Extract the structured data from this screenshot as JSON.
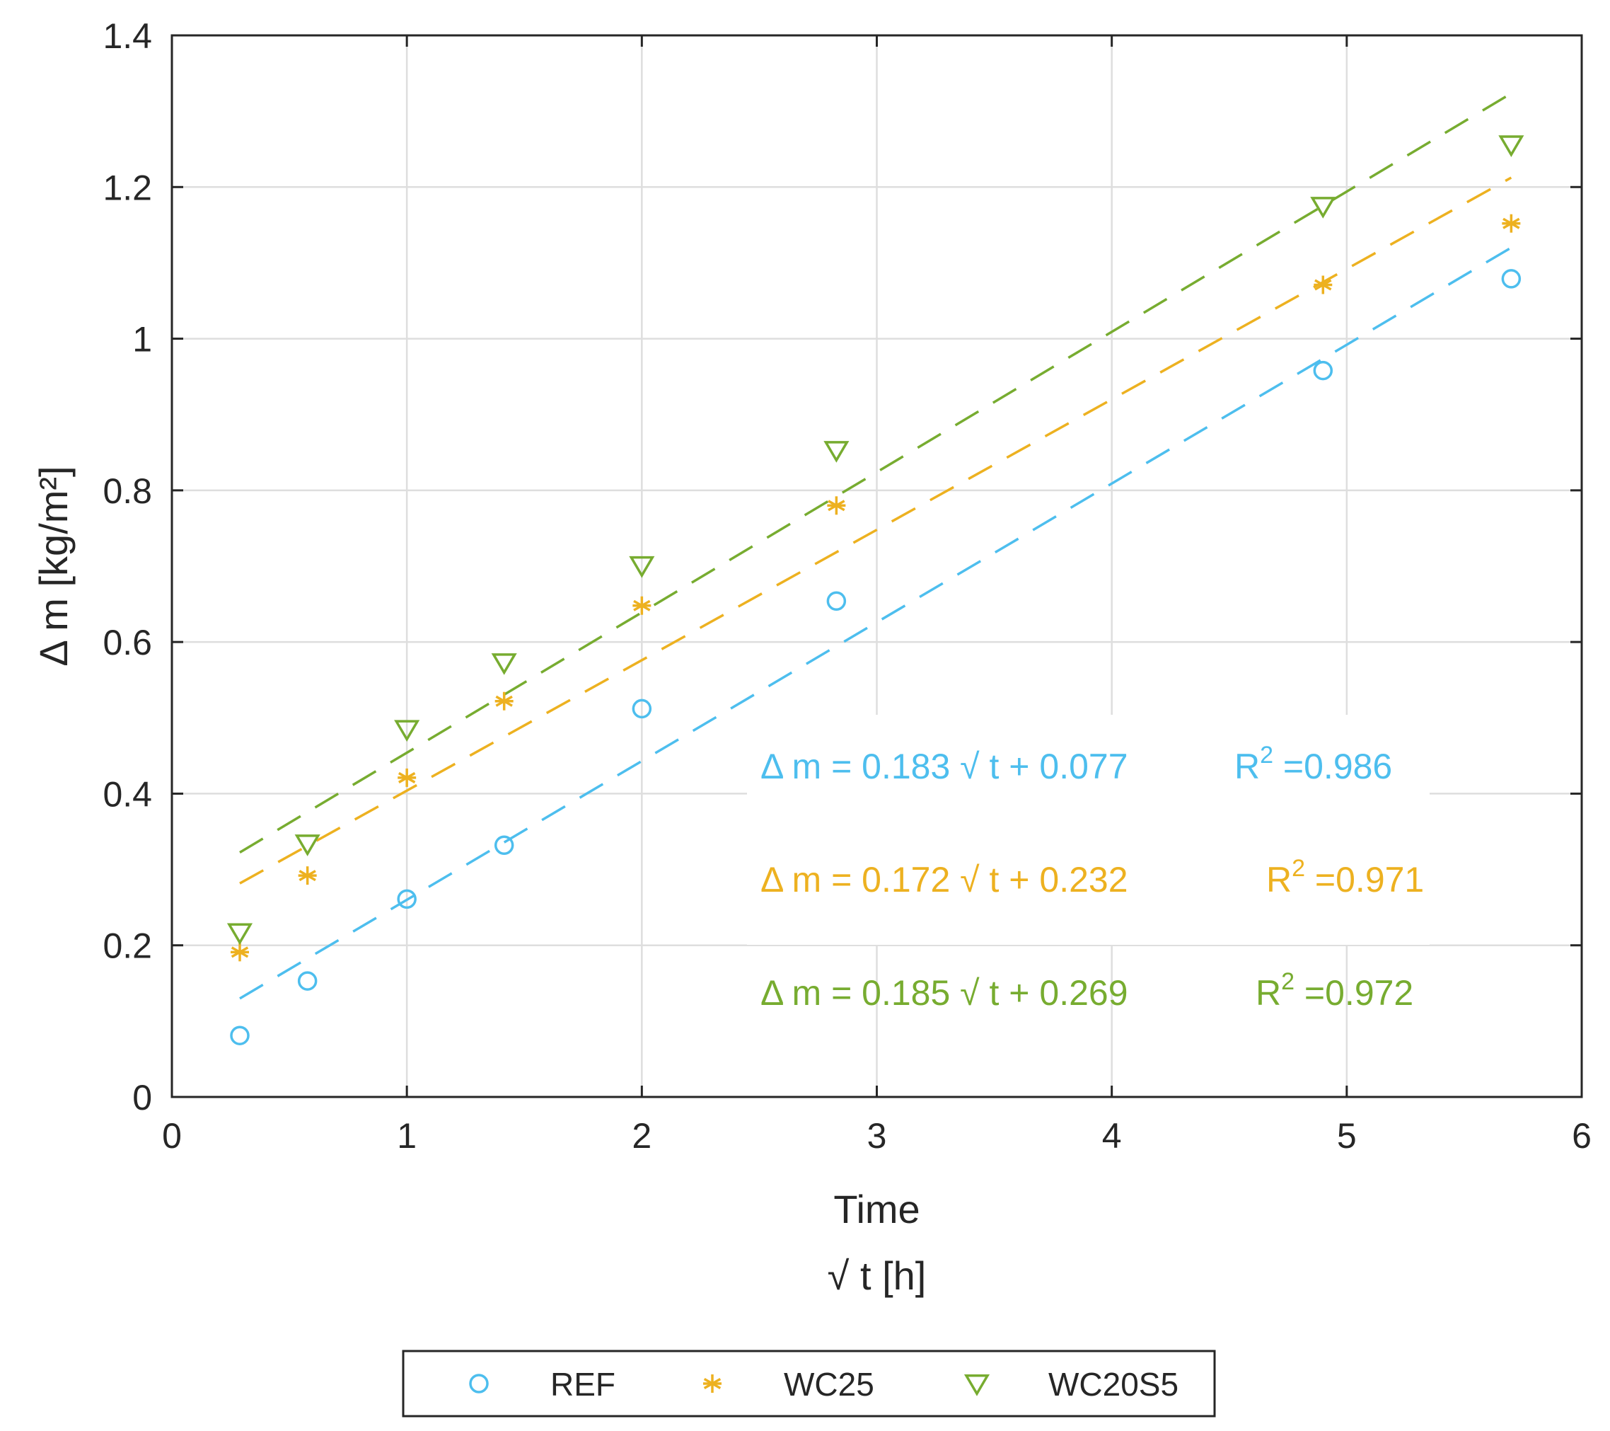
{
  "chart_data": {
    "type": "scatter",
    "title": "",
    "xlabel": "Time",
    "xlabel_line2": "√ t [h]",
    "ylabel": "Δ m  [kg/m²]",
    "xlim": [
      0,
      6
    ],
    "ylim": [
      0,
      1.4
    ],
    "x_ticks": [
      0,
      1,
      2,
      3,
      4,
      5,
      6
    ],
    "y_ticks": [
      0,
      0.2,
      0.4,
      0.6,
      0.8,
      1,
      1.2,
      1.4
    ],
    "x_tick_labels": [
      "0",
      "1",
      "2",
      "3",
      "4",
      "5",
      "6"
    ],
    "y_tick_labels": [
      "0",
      "0.2",
      "0.4",
      "0.6",
      "0.8",
      "1",
      "1.2",
      "1.4"
    ],
    "grid": true,
    "legend_position": "bottom-outside",
    "fit_range": [
      0.289,
      5.7
    ],
    "series": [
      {
        "name": "REF",
        "marker": "circle",
        "color": "#4DBEEE",
        "x": [
          0.289,
          0.577,
          1.0,
          1.414,
          2.0,
          2.828,
          4.899,
          5.7
        ],
        "y": [
          0.081,
          0.153,
          0.261,
          0.332,
          0.512,
          0.654,
          0.958,
          1.079
        ],
        "fit": {
          "slope": 0.183,
          "intercept": 0.077
        },
        "equation": "Δ m = 0.183 √ t + 0.077",
        "r2_label": "R",
        "r2_sup": "2",
        "r2_value": " =0.986"
      },
      {
        "name": "WC25",
        "marker": "asterisk",
        "color": "#EDB120",
        "x": [
          0.289,
          0.577,
          1.0,
          1.414,
          2.0,
          2.828,
          4.899,
          5.7
        ],
        "y": [
          0.191,
          0.292,
          0.421,
          0.522,
          0.648,
          0.78,
          1.071,
          1.152
        ],
        "fit": {
          "slope": 0.172,
          "intercept": 0.232
        },
        "equation": "Δ m = 0.172 √ t + 0.232",
        "r2_label": "R",
        "r2_sup": "2",
        "r2_value": " =0.971"
      },
      {
        "name": "WC20S5",
        "marker": "triangle-down",
        "color": "#77AC30",
        "x": [
          0.289,
          0.577,
          1.0,
          1.414,
          2.0,
          2.828,
          4.899,
          5.7
        ],
        "y": [
          0.217,
          0.334,
          0.485,
          0.573,
          0.701,
          0.853,
          1.175,
          1.256
        ],
        "fit": {
          "slope": 0.185,
          "intercept": 0.269
        },
        "equation": "Δ m = 0.185 √ t + 0.269",
        "r2_label": "R",
        "r2_sup": "2",
        "r2_value": " =0.972"
      }
    ]
  }
}
